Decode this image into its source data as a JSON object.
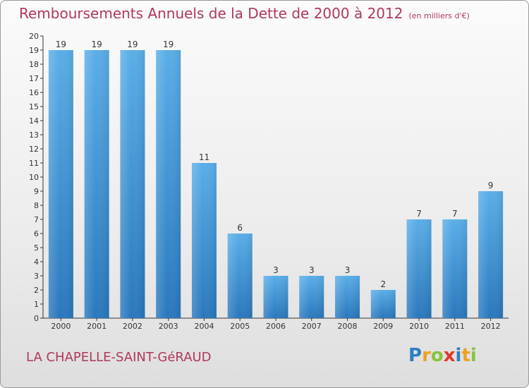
{
  "title": "Remboursements Annuels de la Dette de 2000 à 2012",
  "subtitle": "(en milliers d'€)",
  "place": "LA CHAPELLE-SAINT-GéRAUD",
  "logo": {
    "text": "Proxiti",
    "letters": [
      {
        "ch": "P",
        "color": "#2a7fc4"
      },
      {
        "ch": "r",
        "color": "#f0a020"
      },
      {
        "ch": "o",
        "color": "#8ac23a"
      },
      {
        "ch": "x",
        "color": "#e0352b"
      },
      {
        "ch": "i",
        "color": "#2a7fc4"
      },
      {
        "ch": "t",
        "color": "#f0a020"
      },
      {
        "ch": "i",
        "color": "#8ac23a"
      }
    ]
  },
  "colors": {
    "bar": "#3f95d4",
    "title": "#b0385a"
  },
  "chart_data": {
    "type": "bar",
    "title": "Remboursements Annuels de la Dette de 2000 à 2012",
    "subtitle": "(en milliers d'€)",
    "xlabel": "",
    "ylabel": "",
    "categories": [
      "2000",
      "2001",
      "2002",
      "2003",
      "2004",
      "2005",
      "2006",
      "2007",
      "2008",
      "2009",
      "2010",
      "2011",
      "2012"
    ],
    "values": [
      19,
      19,
      19,
      19,
      11,
      6,
      3,
      3,
      3,
      2,
      7,
      7,
      9
    ],
    "ylim": [
      0,
      20
    ],
    "yticks": [
      0,
      1,
      2,
      3,
      4,
      5,
      6,
      7,
      8,
      9,
      10,
      11,
      12,
      13,
      14,
      15,
      16,
      17,
      18,
      19,
      20
    ],
    "grid": false
  }
}
